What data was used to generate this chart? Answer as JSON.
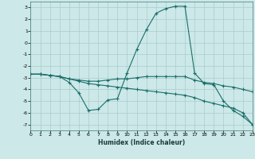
{
  "title": "",
  "xlabel": "Humidex (Indice chaleur)",
  "background_color": "#cce8e8",
  "grid_color": "#aacccc",
  "line_color": "#1a6e6a",
  "xlim": [
    0,
    23
  ],
  "ylim": [
    -7.5,
    3.5
  ],
  "yticks": [
    3,
    2,
    1,
    0,
    -1,
    -2,
    -3,
    -4,
    -5,
    -6,
    -7
  ],
  "xticks": [
    0,
    1,
    2,
    3,
    4,
    5,
    6,
    7,
    8,
    9,
    10,
    11,
    12,
    13,
    14,
    15,
    16,
    17,
    18,
    19,
    20,
    21,
    22,
    23
  ],
  "line1_x": [
    0,
    1,
    2,
    3,
    4,
    5,
    6,
    7,
    8,
    9,
    10,
    11,
    12,
    13,
    14,
    15,
    16,
    17,
    18,
    19,
    20,
    21,
    22,
    23
  ],
  "line1_y": [
    -2.7,
    -2.7,
    -2.8,
    -2.9,
    -3.4,
    -4.3,
    -5.8,
    -5.7,
    -4.9,
    -4.8,
    -2.6,
    -0.6,
    1.1,
    2.5,
    2.9,
    3.1,
    3.1,
    -2.6,
    -3.5,
    -3.6,
    -5.0,
    -5.8,
    -6.3,
    -7.0
  ],
  "line2_x": [
    0,
    1,
    2,
    3,
    4,
    5,
    6,
    7,
    8,
    9,
    10,
    11,
    12,
    13,
    14,
    15,
    16,
    17,
    18,
    19,
    20,
    21,
    22,
    23
  ],
  "line2_y": [
    -2.7,
    -2.7,
    -2.8,
    -2.9,
    -3.1,
    -3.2,
    -3.3,
    -3.3,
    -3.2,
    -3.1,
    -3.1,
    -3.0,
    -2.9,
    -2.9,
    -2.9,
    -2.9,
    -2.9,
    -3.2,
    -3.4,
    -3.5,
    -3.7,
    -3.8,
    -4.0,
    -4.2
  ],
  "line3_x": [
    0,
    1,
    2,
    3,
    4,
    5,
    6,
    7,
    8,
    9,
    10,
    11,
    12,
    13,
    14,
    15,
    16,
    17,
    18,
    19,
    20,
    21,
    22,
    23
  ],
  "line3_y": [
    -2.7,
    -2.7,
    -2.8,
    -2.9,
    -3.1,
    -3.3,
    -3.5,
    -3.6,
    -3.7,
    -3.8,
    -3.9,
    -4.0,
    -4.1,
    -4.2,
    -4.3,
    -4.4,
    -4.5,
    -4.7,
    -5.0,
    -5.2,
    -5.4,
    -5.6,
    -6.0,
    -7.0
  ]
}
